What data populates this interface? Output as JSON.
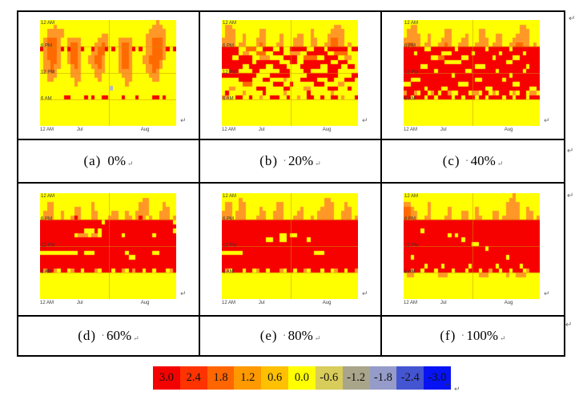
{
  "marks": {
    "crlf": "↵"
  },
  "chart_data": {
    "type": "heatmap",
    "description": "Six panels (a)-(f) of time-of-day vs summer date heatmaps; red band grows with percentage",
    "x_ticks": [
      "Jul",
      "Aug"
    ],
    "y_ticks": [
      "12 AM",
      "6 PM",
      "12 PM",
      "6 AM",
      "12 AM"
    ],
    "grid_size": {
      "cols": 40,
      "rows": 24
    },
    "cell_value_map": {
      ".": 0.0,
      "o": 1.2,
      "O": 1.8,
      "r": 3.0
    },
    "palette": {
      ".": "#FFFF00",
      "o": "#FF9826",
      "O": "#FF6A00",
      "r": "#F60000"
    },
    "panels": [
      {
        "caption": "(a)",
        "sep": "",
        "pct": "0%",
        "grid": [
          "..................................o",
          "....o............................ooo",
          "..ooooo.........................ooooo",
          "..ooooo...........oo...........oooooo",
          ".oOOOo..oooo.....ooo...oooo....ooOOOo",
          ".oOOOo..oOOo....ooOo...oOOo....ooOOOo",
          "roOOOor.rOOor..roOOr.r.oOOor.r.ooOOOor.r",
          ".oOOOo..oOOo...ooOO....oOOo....ooOOOo",
          ".oOOOo..oOOo..ooOOo....oOOo...ooOOOOo",
          ".ooOOo..oOOo..ooOOo....oOOo...ooOOOo",
          ".ooOoo...oOo...ooOo....oOOo....ooOOo",
          ".ooOo....ooo....ooo....oooo....ooOo",
          "..ooo....ooo....oo......ooo.....ooo",
          "..oo......oo.....o.......oo......oo",
          "..........o..............o",
          "",
          "",
          ".......rr....r.r..rr....r...r....rr.r",
          "",
          "",
          "",
          "",
          "",
          ""
        ]
      },
      {
        "caption": "(b)",
        "sep": "·",
        "pct": "20%",
        "grid": [
          "",
          ".oo..............................oo",
          ".ooo.......oo.............o.....oooo",
          ".ooo..o....oo....o....oo..o....ooooo",
          "oooo..o...ooo....o...ooo..oo...oOOoo",
          "oooo.oo...oOo...oo...ooo..oo..ooOOoo.o",
          "rrrrr..OOO..rrr..r..rrrrr..rrr.rrrrrr.rr",
          "rrrrr.oo..OOO..rrr..ooo..rrrrrr..OOOO",
          "rrr..rrrr..ooo....rrrr..OOOO..rrrr..oo",
          "rrrrrrrrr.rrrrrrr...rr..rrrrrrrr..rrr",
          "rrrrrr..rrrrr..rrrr....rrrrrr..rrrr..rr",
          "..rrr....rr......rrr....rr.....rrr",
          "rrrrrrrrrr....rrrrrr.....rrrrrrrrr....rr",
          ".....rrrr...rr....o....rrrrr...rr...rrr",
          "......OOO......rrr..r......rrr....oo",
          "..oo......rrr.....rr....oo.....rrr...r",
          ".r....o.....r.....o......r......o",
          "oo..rr..r..o..rrr..r..o..rr..r..rr.o...r",
          "",
          "",
          "",
          "",
          "",
          ""
        ]
      },
      {
        "caption": "(c)",
        "sep": "·",
        "pct": "40%",
        "grid": [
          "",
          "..oo..............................oo",
          ".ooo........oo........oo..........ooo",
          ".oooo..o....oo....o...oo...oo....oooo",
          "ooooo..o...ooo...oo...ooo..oo...ooooo",
          "oOOoo.oo..ooOo..ooo..oooo.ooo..ooOOoo.o",
          "rrrrrr..rrrrrrr.rrrrrrrr.rrrrrr.rrrrrrrr",
          "rrr.rrrrrrr...rrrrrr.rrrrrrr.rrrrrr.rrrr",
          "rrrrrrrr..OOrrrrr..rrrrrrr.rrrrr..rrrrrr",
          "rrrrrrrrrrrr.....rrrrrrrrrrrrr..rrrrrrrr",
          "rrrrr..rrrrrrrrrrrrrr...rrrrrrrrrrrr.rrr",
          "rrrrrrrrr.rrrrrrrr..rrrrrrr.rrrrrrr.rrrr",
          "rrrrrrrrrrrrrr.rrrrrrrrrrrrrrrr.rrrrrrrr",
          "rr...rrrrrrrrrrrrrrrr..rrrrrr.rrrrrrrrrr",
          "..rrrrrrrrrrrrrr...rrrrrrrrrrrrr..rrrrrr",
          "rrrrrr.rrrr..rrrrrrrrrrr..rrrrrrrrrrr..r",
          "orro.rr.or.rro..rrr.oo.rr.o.rrr.o.rr.oo",
          "rr.rrr.rr.rrrr.rr.rrr.rr.rrrr.rr.rrr.rrr",
          "",
          "",
          "",
          "",
          "",
          ""
        ]
      },
      {
        "caption": "(d)",
        "sep": "·",
        "pct": "60%",
        "grid": [
          "",
          "..............................oo",
          "..oo...........o.............ooo....o",
          "..oo......oo...o.............ooo....oo",
          ".ooo..o...oo...oo....oo..o..oooo...ooo",
          ".ooo..o..oro...oo...ooo..oo.oro.o..ooo.o",
          "rrrrrrrrrrrrrrrrrr.rrrrrrrrrrrrrrrrrrrr",
          "rrrrrrrrrrrrrrrrrrrrrrrrrrrrrrrrrrrrrrrr",
          "rrrrrrrrrrrrr...r.rrrrrrrrrrrrrrrrrrrrr",
          "rrrrrrrrrr.ooo.oo.rrrrrr.rrrrrrrr.rrrrrr",
          "rrrrrrrrrrrrrrrrrrrrrrrrrrrrrrrrrrrrrrrr",
          "rrrrrrrrrrrrrrrrrrrrrrrrrrrrrrrrrrrrrrrr",
          "rrrrrrrrrrrrrrrrrrrrrrrrrrrrrrrrrrrrrrrr",
          "...........rr...rrrrrrrrr.rrrrrrr..rrrrr",
          "rrrrrrrrrrrrrrrrrrrrrrrrrr..rrrrrrrrrrrr",
          "rrrrrrrrrrrrrrrrrrrrrrrrrrrrrrrrrrrrrrrr",
          "rrrrrrrrrrrrrrrrrrrrrrrrrrrrrrrrrrrrrrrr",
          "rorro.rr.orr.rrro.rrr.rro.rorr.rr.rrr.or",
          "",
          "",
          "",
          "",
          "",
          ""
        ]
      },
      {
        "caption": "(e)",
        "sep": "·",
        "pct": "80%",
        "grid": [
          "",
          ".....o........................oo",
          ".oo..oo.........oo............ooo...o",
          ".oo..oo....o....oo.....o.....oooo...oo",
          "ooo.ooo....oo..ooo....oo....ooooo..ooo",
          "ooo.ooo...ooo..ooo...ooo..o.ooooo..ooo.o",
          "rrrrrrrrrrrrrrrrrrrrrrrrrrrrrrrrrrrrrrrr",
          "rrrrrrrrrrrrrrrrrrrrrrrrrrrrrrrrrrrrrrrr",
          "rrrrrrrrrrrrrrrrrrrrrrrrrrrrrrrrrrrrrrrr",
          "rrrrrrrrrrrrrrrrr..r..rrrrrrrrrrrrrrrrrr",
          "rrrrrrrrrrrrr..rr..rrrrrr.rrrrrrrrrrrrrr",
          "rrrrrrrrrrrrrrrrrrrrrrrrrrrrrrrrrrrrrrrr",
          "rrrrrrrrrrrrrrrrrrrrrrrrrrrrrrrrrrrrrrrr",
          "......rrrrrrrrrrrrrrrrrrrrr...rrrrrrrrrr",
          "rrrrrrrrrrrrrrrrrrrrrrrrrrrrrrrrrrrrrrrr",
          "rrrrrrrrrrrrrrrrrrrrrrrrrrrrrrrrrrrrrrrr",
          "rrrrrrrrrrrrrrrrrrrrrrrrrrrrrrrrrrrrrrrr",
          "ro.rrr.rr.orr.rrro.rr.rro.rrr.rr.orr.rro",
          "",
          "",
          "",
          "",
          "",
          ""
        ]
      },
      {
        "caption": "(f)",
        "sep": "·",
        "pct": "100%",
        "grid": [
          "................................o",
          "...............................oo",
          "oo.....o......................oooo",
          "OOo....o.....o.......o........oooo..o",
          "OOoo...o.....o...oo..o....oo..oooo..oo",
          "OOoo..oo....oo...oo..oo...oo.ooooo..oo.o",
          "rrrrrrrrrrrrrrrrrrrrrrrrrrrrrrrrrrrrrrrr",
          "rrrrrrrrrrrrrrrrrrrrrrrrrrrrrrrrrrrrrrrr",
          "rrrrr.rrrrrrrrrrrrrrrrrrrrrrrrrrrrrrrrrr",
          "rrrrrrrrrrrrr.r.rrrrrrrrrrrrrrrrrrrrrrrr",
          "rrrrrrrrrrrrrrrrr.rrrrrrrrrrrrrrrrrrrrrr",
          "rrrrrrrrrrrrrrrrrrrr..rrrrrrrrrrrrrrrrrr",
          "rrrrrrrrrrrrrrrrrrrrrrrr.rrrrrrrrrrrrrrr",
          "rrrrrrrrrrrrrrrrrrrrrrrrrrrrrrrrrrrrrrrr",
          "rr.rrrrrrrrrrrrrrrrrrrrrrrrrrr.rrrrrrrrr",
          "rrrrrrrrrrrrrrrrrrrrrrrrrrrrrrrrrrrrrrrr",
          "rrrrrr.rrrr.rrrrrrr.rrrrrrr.rrrrrr.rrrrr",
          "rrorr.rrr.rrrr.rrr.rrr.rrorr.rr.rrr.orrr",
          ".oo.......ooo.........ooo.....o..ooo",
          "",
          "",
          "",
          "",
          ""
        ]
      }
    ],
    "colorbar": {
      "segments": [
        {
          "label": "3.0",
          "color": "#F40202"
        },
        {
          "label": "2.4",
          "color": "#FF3300"
        },
        {
          "label": "1.8",
          "color": "#FF6600"
        },
        {
          "label": "1.2",
          "color": "#FF9900"
        },
        {
          "label": "0.6",
          "color": "#FFC000"
        },
        {
          "label": "0.0",
          "color": "#FFFF00"
        },
        {
          "label": "-0.6",
          "color": "#D8CC5A"
        },
        {
          "label": "-1.2",
          "color": "#A9A58B"
        },
        {
          "label": "-1.8",
          "color": "#959CC9"
        },
        {
          "label": "-2.4",
          "color": "#4455D2"
        },
        {
          "label": "-3.0",
          "color": "#0713F2"
        }
      ]
    }
  }
}
